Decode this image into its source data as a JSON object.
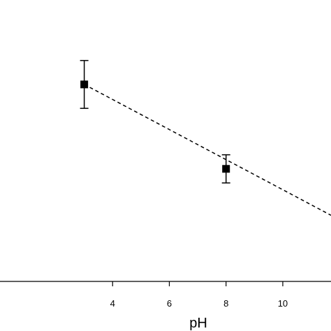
{
  "chart_data": {
    "type": "scatter",
    "title": "",
    "xlabel": "pH",
    "ylabel": "",
    "xlim": [
      0.03,
      11.7
    ],
    "ylim": [
      0,
      1
    ],
    "x_ticks": [
      4,
      6,
      8,
      10
    ],
    "x_tick_labels": [
      "4",
      "6",
      "8",
      "10"
    ],
    "grid": false,
    "series": [
      {
        "type": "points_with_error",
        "marker": "square",
        "color": "#000000",
        "points": [
          {
            "x": 3,
            "y": 0.7,
            "err": 0.085
          },
          {
            "x": 8,
            "y": 0.4,
            "err": 0.05
          }
        ]
      },
      {
        "type": "fit_line",
        "style": "dashed",
        "color": "#000000",
        "points": [
          {
            "x": 3,
            "y": 0.7
          },
          {
            "x": 11.7,
            "y": 0.235
          }
        ]
      }
    ]
  }
}
